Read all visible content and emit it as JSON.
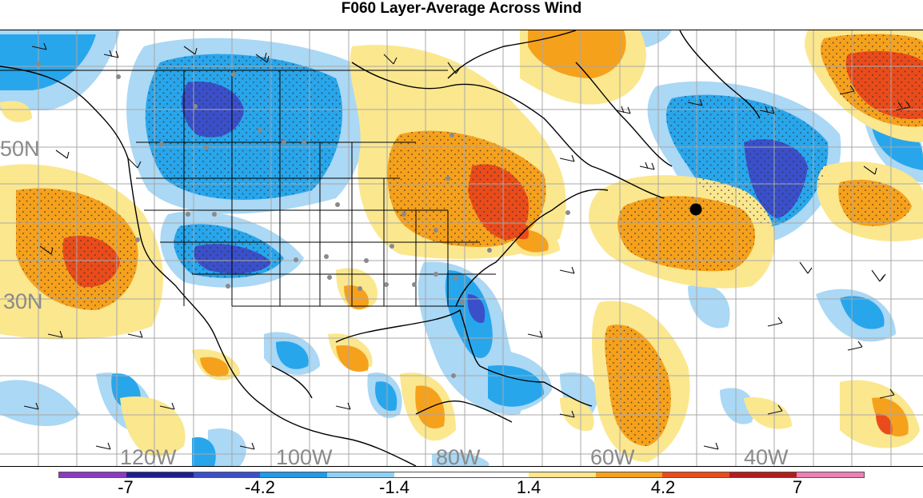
{
  "title": "F060 Layer-Average Across Wind",
  "lat_labels": [
    "50N",
    "30N"
  ],
  "lon_labels": [
    "120W",
    "100W",
    "80W",
    "60W",
    "40W"
  ],
  "colorbar": {
    "colors": [
      "#8a3bc2",
      "#1d1f8e",
      "#3a4fc9",
      "#1f9be8",
      "#8fd0f5",
      "#ffffff",
      "#ffffff",
      "#fde68b",
      "#f6a11c",
      "#ea4b1a",
      "#b11d1d",
      "#ec80b4"
    ],
    "tick_labels": [
      "-7",
      "-4.2",
      "-1.4",
      "1.4",
      "4.2",
      "7"
    ]
  },
  "legend_colors": {
    "light_blue": "#aad8f5",
    "mid_blue": "#28a6ec",
    "dark_blue": "#3a4fc9",
    "light_yellow": "#fbe78e",
    "orange": "#f6a11c",
    "red_orange": "#ea4b1a"
  },
  "marker_icon": "black-dot"
}
